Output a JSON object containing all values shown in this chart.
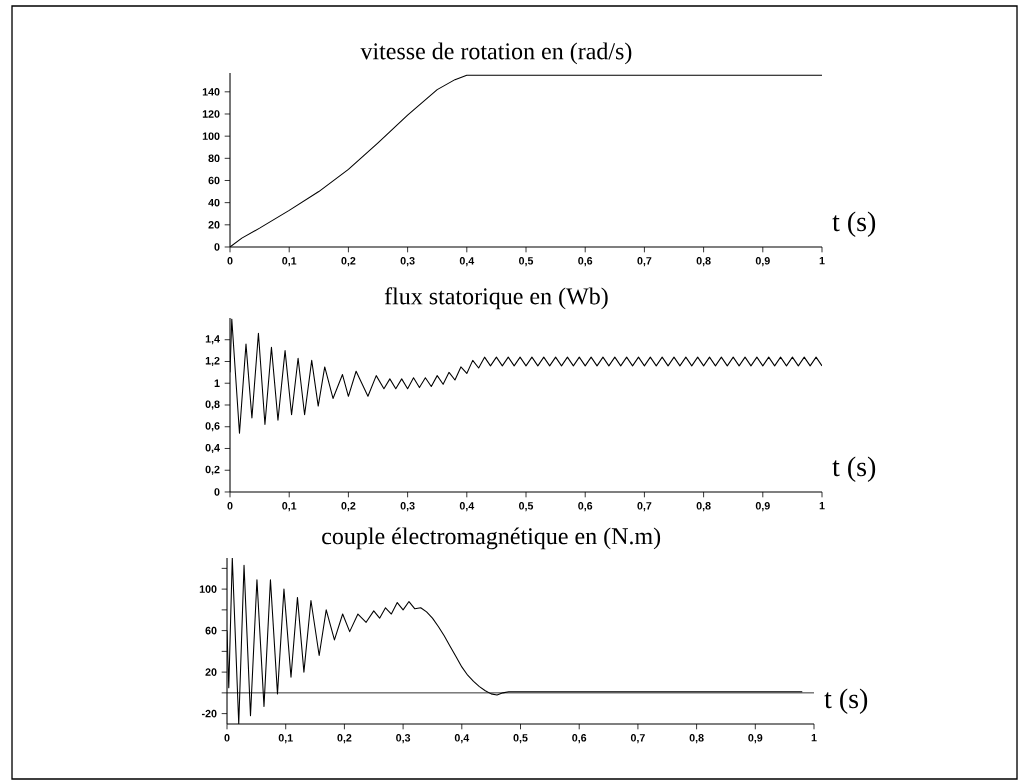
{
  "chart_data": [
    {
      "type": "line",
      "title": "vitesse de rotation en (rad/s)",
      "xlabel": "t (s)",
      "color": "#000000",
      "x": [
        0,
        0.02,
        0.05,
        0.1,
        0.15,
        0.2,
        0.25,
        0.3,
        0.35,
        0.38,
        0.4,
        0.43,
        1
      ],
      "values": [
        0,
        8,
        17,
        33,
        50,
        70,
        94,
        119,
        142,
        151,
        155,
        155,
        155
      ],
      "xlim": [
        0,
        1
      ],
      "ylim": [
        0,
        157
      ],
      "xticks": [
        0,
        {
          "value": 0.1,
          "label": "0,1"
        },
        {
          "value": 0.2,
          "label": "0,2"
        },
        {
          "value": 0.3,
          "label": "0,3"
        },
        {
          "value": 0.4,
          "label": "0,4"
        },
        {
          "value": 0.5,
          "label": "0,5"
        },
        {
          "value": 0.6,
          "label": "0,6"
        },
        {
          "value": 0.7,
          "label": "0,7"
        },
        {
          "value": 0.8,
          "label": "0,8"
        },
        {
          "value": 0.9,
          "label": "0,9"
        },
        1
      ],
      "yticks": [
        0,
        20,
        40,
        60,
        80,
        100,
        120,
        140
      ]
    },
    {
      "type": "line",
      "title": "flux statorique  en (Wb)",
      "xlabel": "t (s)",
      "color": "#000000",
      "x": [
        0,
        0.003,
        0.016,
        0.027,
        0.037,
        0.048,
        0.059,
        0.07,
        0.081,
        0.093,
        0.104,
        0.115,
        0.126,
        0.138,
        0.149,
        0.16,
        0.174,
        0.19,
        0.2,
        0.213,
        0.233,
        0.247,
        0.26,
        0.27,
        0.28,
        0.29,
        0.3,
        0.31,
        0.32,
        0.33,
        0.34,
        0.35,
        0.36,
        0.37,
        0.38,
        0.39,
        0.4,
        0.41,
        0.42,
        0.43,
        0.44,
        0.45,
        0.46,
        0.47,
        0.48,
        0.49,
        0.5,
        0.51,
        0.52,
        0.53,
        0.54,
        0.55,
        0.56,
        0.57,
        0.58,
        0.59,
        0.6,
        0.61,
        0.62,
        0.63,
        0.64,
        0.65,
        0.66,
        0.67,
        0.68,
        0.69,
        0.7,
        0.71,
        0.72,
        0.73,
        0.74,
        0.75,
        0.76,
        0.77,
        0.78,
        0.79,
        0.8,
        0.81,
        0.82,
        0.83,
        0.84,
        0.85,
        0.86,
        0.87,
        0.88,
        0.89,
        0.9,
        0.91,
        0.92,
        0.93,
        0.94,
        0.95,
        0.96,
        0.97,
        0.98,
        0.99,
        1
      ],
      "values": [
        1.1,
        1.59,
        0.54,
        1.36,
        0.68,
        1.46,
        0.62,
        1.33,
        0.66,
        1.3,
        0.71,
        1.23,
        0.71,
        1.21,
        0.79,
        1.15,
        0.86,
        1.08,
        0.88,
        1.11,
        0.88,
        1.07,
        0.95,
        1.04,
        0.95,
        1.04,
        0.95,
        1.05,
        0.96,
        1.05,
        0.97,
        1.07,
        0.99,
        1.1,
        1.03,
        1.15,
        1.09,
        1.21,
        1.14,
        1.24,
        1.16,
        1.24,
        1.16,
        1.24,
        1.16,
        1.24,
        1.16,
        1.24,
        1.16,
        1.24,
        1.16,
        1.24,
        1.16,
        1.24,
        1.16,
        1.24,
        1.16,
        1.24,
        1.16,
        1.24,
        1.16,
        1.24,
        1.16,
        1.24,
        1.16,
        1.24,
        1.16,
        1.24,
        1.16,
        1.24,
        1.16,
        1.24,
        1.16,
        1.24,
        1.16,
        1.24,
        1.16,
        1.24,
        1.16,
        1.24,
        1.16,
        1.24,
        1.16,
        1.24,
        1.16,
        1.24,
        1.16,
        1.24,
        1.16,
        1.24,
        1.16,
        1.24,
        1.16,
        1.24,
        1.16,
        1.24,
        1.16
      ],
      "xlim": [
        0,
        1
      ],
      "ylim": [
        0,
        1.6
      ],
      "xticks": [
        0,
        {
          "value": 0.1,
          "label": "0,1"
        },
        {
          "value": 0.2,
          "label": "0,2"
        },
        {
          "value": 0.3,
          "label": "0,3"
        },
        {
          "value": 0.4,
          "label": "0,4"
        },
        {
          "value": 0.5,
          "label": "0,5"
        },
        {
          "value": 0.6,
          "label": "0,6"
        },
        {
          "value": 0.7,
          "label": "0,7"
        },
        {
          "value": 0.8,
          "label": "0,8"
        },
        {
          "value": 0.9,
          "label": "0,9"
        },
        1
      ],
      "yticks": [
        0,
        {
          "value": 0.2,
          "label": "0,2"
        },
        {
          "value": 0.4,
          "label": "0,4"
        },
        {
          "value": 0.6,
          "label": "0,6"
        },
        {
          "value": 0.8,
          "label": "0,8"
        },
        1,
        {
          "value": 1.2,
          "label": "1,2"
        },
        {
          "value": 1.4,
          "label": "1,4"
        }
      ]
    },
    {
      "type": "line",
      "title": "couple électromagnétique en (N.m)",
      "xlabel": "t (s)",
      "color": "#000000",
      "x": [
        0,
        0.003,
        0.009,
        0.02,
        0.029,
        0.04,
        0.051,
        0.063,
        0.074,
        0.086,
        0.097,
        0.109,
        0.12,
        0.131,
        0.143,
        0.157,
        0.169,
        0.183,
        0.197,
        0.209,
        0.223,
        0.237,
        0.25,
        0.26,
        0.27,
        0.28,
        0.29,
        0.3,
        0.31,
        0.32,
        0.33,
        0.34,
        0.35,
        0.36,
        0.37,
        0.38,
        0.39,
        0.4,
        0.41,
        0.42,
        0.43,
        0.44,
        0.45,
        0.46,
        0.47,
        0.48,
        0.5,
        0.6,
        0.7,
        0.8,
        0.9,
        0.98
      ],
      "values": [
        60,
        5,
        130,
        -30,
        123,
        -22,
        109,
        -13,
        109,
        -1,
        100,
        15,
        92,
        20,
        89,
        36,
        80,
        51,
        76,
        59,
        76,
        68,
        79,
        72,
        82,
        76,
        87,
        80,
        88,
        81,
        82,
        78,
        72,
        64,
        55,
        45,
        35,
        25,
        17,
        11,
        6,
        2,
        -1,
        -2,
        0,
        1,
        1,
        1,
        1,
        1,
        1,
        1
      ],
      "xlim": [
        0,
        1
      ],
      "ylim": [
        -30,
        130
      ],
      "xticks": [
        0,
        {
          "value": 0.1,
          "label": "0,1"
        },
        {
          "value": 0.2,
          "label": "0,2"
        },
        {
          "value": 0.3,
          "label": "0,3"
        },
        {
          "value": 0.4,
          "label": "0,4"
        },
        {
          "value": 0.5,
          "label": "0,5"
        },
        {
          "value": 0.6,
          "label": "0,6"
        },
        {
          "value": 0.7,
          "label": "0,7"
        },
        {
          "value": 0.8,
          "label": "0,8"
        },
        {
          "value": 0.9,
          "label": "0,9"
        },
        1
      ],
      "yticks": [
        -20,
        {
          "value": 0,
          "label": null
        },
        20,
        {
          "value": 40,
          "label": null
        },
        60,
        {
          "value": 80,
          "label": null
        },
        100,
        {
          "value": 120,
          "label": null
        }
      ],
      "ref_lines": [
        {
          "axis": "y",
          "value": 0
        }
      ]
    }
  ]
}
